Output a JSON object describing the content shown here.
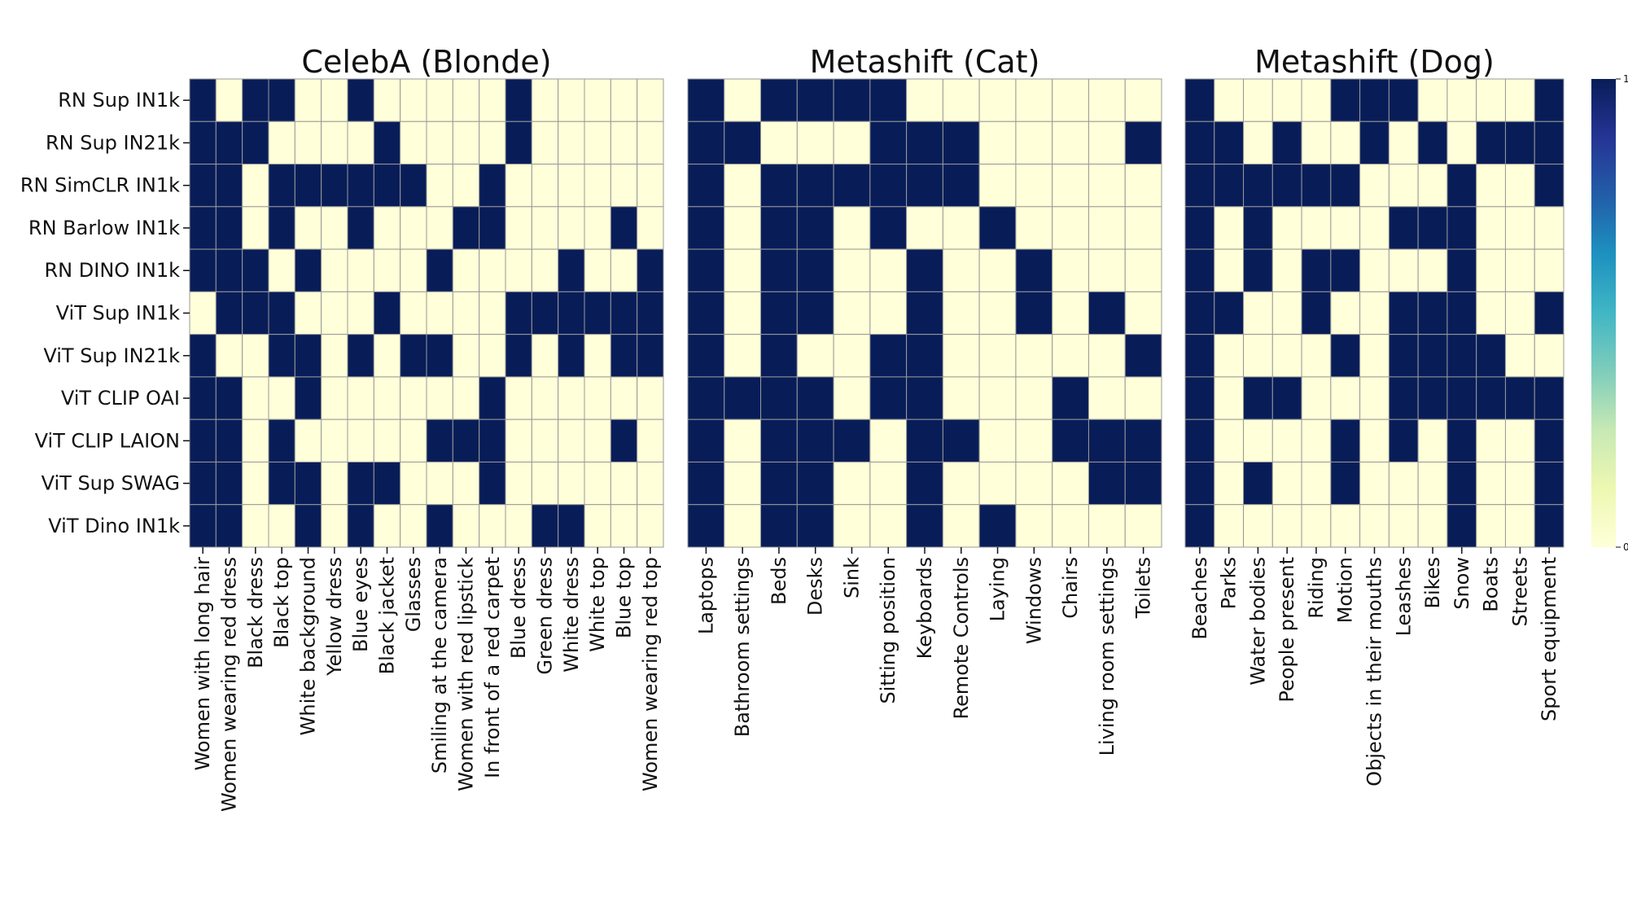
{
  "chart_data": [
    {
      "type": "heatmap",
      "title": "CelebA (Blonde)",
      "rows": [
        "RN Sup IN1k",
        "RN Sup IN21k",
        "RN SimCLR IN1k",
        "RN Barlow IN1k",
        "RN DINO IN1k",
        "ViT Sup IN1k",
        "ViT Sup IN21k",
        "ViT CLIP OAI",
        "ViT CLIP LAION",
        "ViT Sup SWAG",
        "ViT Dino IN1k"
      ],
      "columns": [
        "Women with long hair",
        "Women wearing red dress",
        "Black dress",
        "Black top",
        "White background",
        "Yellow dress",
        "Blue eyes",
        "Black jacket",
        "Glasses",
        "Smiling at the camera",
        "Women with red lipstick",
        "In front of a red carpet",
        "Blue dress",
        "Green dress",
        "White dress",
        "White top",
        "Blue top",
        "Women wearing red top"
      ],
      "values": [
        [
          1,
          0,
          1,
          1,
          0,
          0,
          1,
          0,
          0,
          0,
          0,
          0,
          1,
          0,
          0,
          0,
          0,
          0
        ],
        [
          1,
          1,
          1,
          0,
          0,
          0,
          0,
          1,
          0,
          0,
          0,
          0,
          1,
          0,
          0,
          0,
          0,
          0
        ],
        [
          1,
          1,
          0,
          1,
          1,
          1,
          1,
          1,
          1,
          0,
          0,
          1,
          0,
          0,
          0,
          0,
          0,
          0
        ],
        [
          1,
          1,
          0,
          1,
          0,
          0,
          1,
          0,
          0,
          0,
          1,
          1,
          0,
          0,
          0,
          0,
          1,
          0
        ],
        [
          1,
          1,
          1,
          0,
          1,
          0,
          0,
          0,
          0,
          1,
          0,
          0,
          0,
          0,
          1,
          0,
          0,
          1
        ],
        [
          0,
          1,
          1,
          1,
          0,
          0,
          0,
          1,
          0,
          0,
          0,
          0,
          1,
          1,
          1,
          1,
          1,
          1
        ],
        [
          1,
          0,
          0,
          1,
          1,
          0,
          1,
          0,
          1,
          1,
          0,
          0,
          1,
          0,
          1,
          0,
          1,
          1
        ],
        [
          1,
          1,
          0,
          0,
          1,
          0,
          0,
          0,
          0,
          0,
          0,
          1,
          0,
          0,
          0,
          0,
          0,
          0
        ],
        [
          1,
          1,
          0,
          1,
          0,
          0,
          0,
          0,
          0,
          1,
          1,
          1,
          0,
          0,
          0,
          0,
          1,
          0
        ],
        [
          1,
          1,
          0,
          1,
          1,
          0,
          1,
          1,
          0,
          0,
          0,
          1,
          0,
          0,
          0,
          0,
          0,
          0
        ],
        [
          1,
          1,
          0,
          0,
          1,
          0,
          1,
          0,
          0,
          1,
          0,
          0,
          0,
          1,
          1,
          0,
          0,
          0
        ]
      ]
    },
    {
      "type": "heatmap",
      "title": "Metashift (Cat)",
      "rows": [
        "RN Sup IN1k",
        "RN Sup IN21k",
        "RN SimCLR IN1k",
        "RN Barlow IN1k",
        "RN DINO IN1k",
        "ViT Sup IN1k",
        "ViT Sup IN21k",
        "ViT CLIP OAI",
        "ViT CLIP LAION",
        "ViT Sup SWAG",
        "ViT Dino IN1k"
      ],
      "columns": [
        "Laptops",
        "Bathroom settings",
        "Beds",
        "Desks",
        "Sink",
        "Sitting position",
        "Keyboards",
        "Remote Controls",
        "Laying",
        "Windows",
        "Chairs",
        "Living room settings",
        "Toilets"
      ],
      "values": [
        [
          1,
          0,
          1,
          1,
          1,
          1,
          0,
          0,
          0,
          0,
          0,
          0,
          0
        ],
        [
          1,
          1,
          0,
          0,
          0,
          1,
          1,
          1,
          0,
          0,
          0,
          0,
          1
        ],
        [
          1,
          0,
          1,
          1,
          1,
          1,
          1,
          1,
          0,
          0,
          0,
          0,
          0
        ],
        [
          1,
          0,
          1,
          1,
          0,
          1,
          0,
          0,
          1,
          0,
          0,
          0,
          0
        ],
        [
          1,
          0,
          1,
          1,
          0,
          0,
          1,
          0,
          0,
          1,
          0,
          0,
          0
        ],
        [
          1,
          0,
          1,
          1,
          0,
          0,
          1,
          0,
          0,
          1,
          0,
          1,
          0
        ],
        [
          1,
          0,
          1,
          0,
          0,
          1,
          1,
          0,
          0,
          0,
          0,
          0,
          1
        ],
        [
          1,
          1,
          1,
          1,
          0,
          1,
          1,
          0,
          0,
          0,
          1,
          0,
          0
        ],
        [
          1,
          0,
          1,
          1,
          1,
          0,
          1,
          1,
          0,
          0,
          1,
          1,
          1
        ],
        [
          1,
          0,
          1,
          1,
          0,
          0,
          1,
          0,
          0,
          0,
          0,
          1,
          1
        ],
        [
          1,
          0,
          1,
          1,
          0,
          0,
          1,
          0,
          1,
          0,
          0,
          0,
          0
        ]
      ]
    },
    {
      "type": "heatmap",
      "title": "Metashift (Dog)",
      "rows": [
        "RN Sup IN1k",
        "RN Sup IN21k",
        "RN SimCLR IN1k",
        "RN Barlow IN1k",
        "RN DINO IN1k",
        "ViT Sup IN1k",
        "ViT Sup IN21k",
        "ViT CLIP OAI",
        "ViT CLIP LAION",
        "ViT Sup SWAG",
        "ViT Dino IN1k"
      ],
      "columns": [
        "Beaches",
        "Parks",
        "Water bodies",
        "People present",
        "Riding",
        "Motion",
        "Objects in their mouths",
        "Leashes",
        "Bikes",
        "Snow",
        "Boats",
        "Streets",
        "Sport equipment"
      ],
      "values": [
        [
          1,
          0,
          0,
          0,
          0,
          1,
          1,
          1,
          0,
          0,
          0,
          0,
          1
        ],
        [
          1,
          1,
          0,
          1,
          0,
          0,
          1,
          0,
          1,
          0,
          1,
          1,
          1
        ],
        [
          1,
          1,
          1,
          1,
          1,
          1,
          0,
          0,
          0,
          1,
          0,
          0,
          1
        ],
        [
          1,
          0,
          1,
          0,
          0,
          0,
          0,
          1,
          1,
          1,
          0,
          0,
          0
        ],
        [
          1,
          0,
          1,
          0,
          1,
          1,
          0,
          0,
          0,
          1,
          0,
          0,
          0
        ],
        [
          1,
          1,
          0,
          0,
          1,
          0,
          0,
          1,
          1,
          1,
          0,
          0,
          1
        ],
        [
          1,
          0,
          0,
          0,
          0,
          1,
          0,
          1,
          1,
          1,
          1,
          0,
          0
        ],
        [
          1,
          0,
          1,
          1,
          0,
          0,
          0,
          1,
          1,
          1,
          1,
          1,
          1
        ],
        [
          1,
          0,
          0,
          0,
          0,
          1,
          0,
          1,
          0,
          1,
          0,
          0,
          1
        ],
        [
          1,
          0,
          1,
          0,
          0,
          1,
          0,
          0,
          0,
          1,
          0,
          0,
          1
        ],
        [
          1,
          0,
          0,
          0,
          0,
          0,
          0,
          0,
          0,
          1,
          0,
          0,
          1
        ]
      ]
    }
  ],
  "colorbar": {
    "max_label": "1",
    "min_label": "0",
    "gradient": [
      "#ffffd9",
      "#edf8b1",
      "#c7e9b4",
      "#7fcdbb",
      "#41b6c4",
      "#1d91c0",
      "#225ea8",
      "#253494",
      "#081d58"
    ]
  },
  "colors": {
    "high": "#081d58",
    "low": "#ffffd9",
    "grid": "#999999"
  }
}
